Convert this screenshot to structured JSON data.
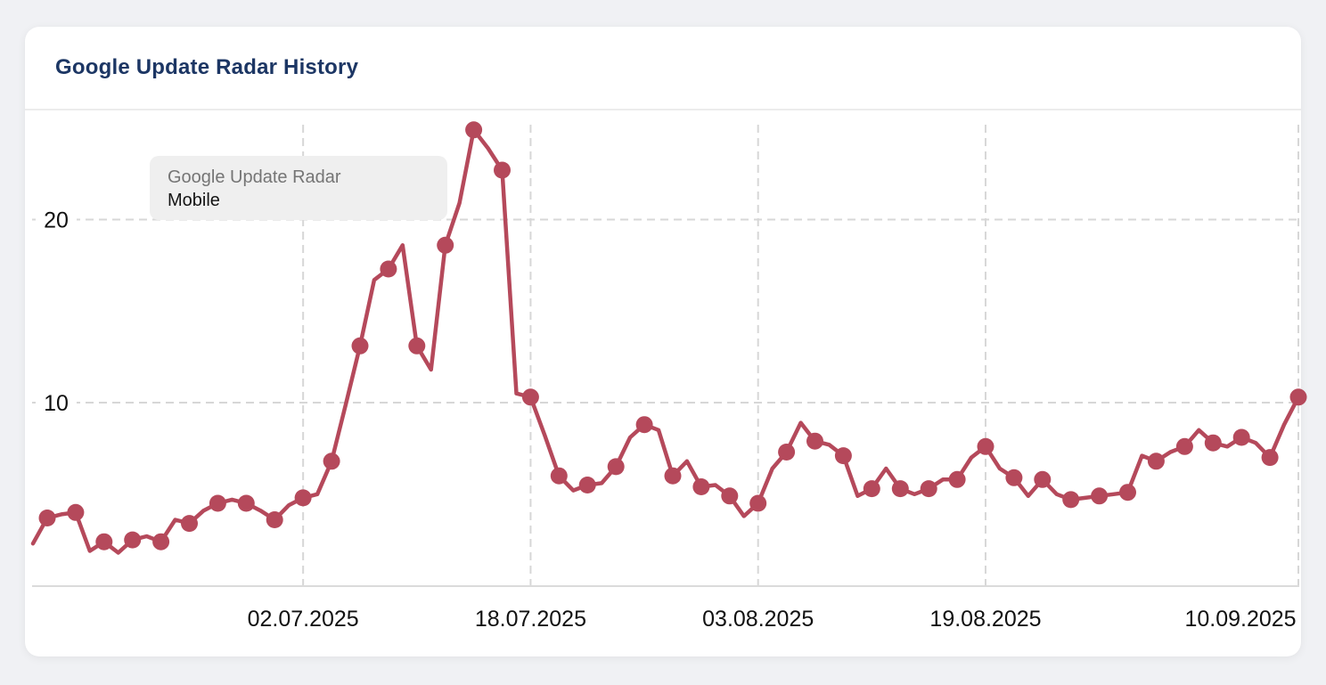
{
  "page": {
    "background": "#f0f1f4"
  },
  "card": {
    "title": "Google Update Radar History",
    "title_color": "#1c3664"
  },
  "tooltip": {
    "series_name": "Google Update Radar",
    "category": "Mobile",
    "bg_color": "#efefef",
    "series_name_color": "#757575",
    "category_color": "#141414"
  },
  "chart_data": {
    "type": "line",
    "title": "Google Update Radar History",
    "series": [
      {
        "name": "Google Update Radar Mobile",
        "color": "#b5495b",
        "values": [
          2.3,
          3.7,
          3.9,
          4.0,
          1.9,
          2.4,
          1.8,
          2.5,
          2.7,
          2.4,
          3.6,
          3.4,
          4.1,
          4.5,
          4.7,
          4.5,
          4.1,
          3.6,
          4.4,
          4.8,
          5.0,
          6.8,
          9.9,
          13.1,
          16.7,
          17.3,
          18.6,
          13.1,
          11.8,
          18.6,
          20.9,
          24.9,
          23.9,
          22.7,
          10.5,
          10.3,
          8.2,
          6.0,
          5.2,
          5.5,
          5.6,
          6.5,
          8.1,
          8.8,
          8.5,
          6.0,
          6.8,
          5.4,
          5.5,
          4.9,
          3.8,
          4.5,
          6.4,
          7.3,
          8.9,
          7.9,
          7.7,
          7.1,
          4.9,
          5.3,
          6.4,
          5.3,
          5.0,
          5.3,
          5.8,
          5.8,
          7.0,
          7.6,
          6.4,
          5.9,
          4.9,
          5.8,
          5.0,
          4.7,
          4.8,
          4.9,
          5.0,
          5.1,
          7.1,
          6.8,
          7.3,
          7.6,
          8.5,
          7.8,
          7.6,
          8.1,
          7.8,
          7.0,
          8.8,
          10.3
        ]
      }
    ],
    "x_ticks": [
      {
        "label": "02.07.2025",
        "index": 19
      },
      {
        "label": "18.07.2025",
        "index": 35
      },
      {
        "label": "03.08.2025",
        "index": 51
      },
      {
        "label": "19.08.2025",
        "index": 67
      },
      {
        "label": "10.09.2025",
        "index": 89
      }
    ],
    "y_ticks": [
      {
        "label": "20",
        "value": 20
      },
      {
        "label": "10",
        "value": 10
      }
    ],
    "ylim": [
      0,
      26
    ],
    "grid": "dashed",
    "grid_color": "#d7d7d7",
    "axis_line_color": "#cfcfcf",
    "tick_label_color": "#111111",
    "marker_every": 2,
    "marker_offset": 1,
    "legend_position": "tooltip-top-left"
  }
}
